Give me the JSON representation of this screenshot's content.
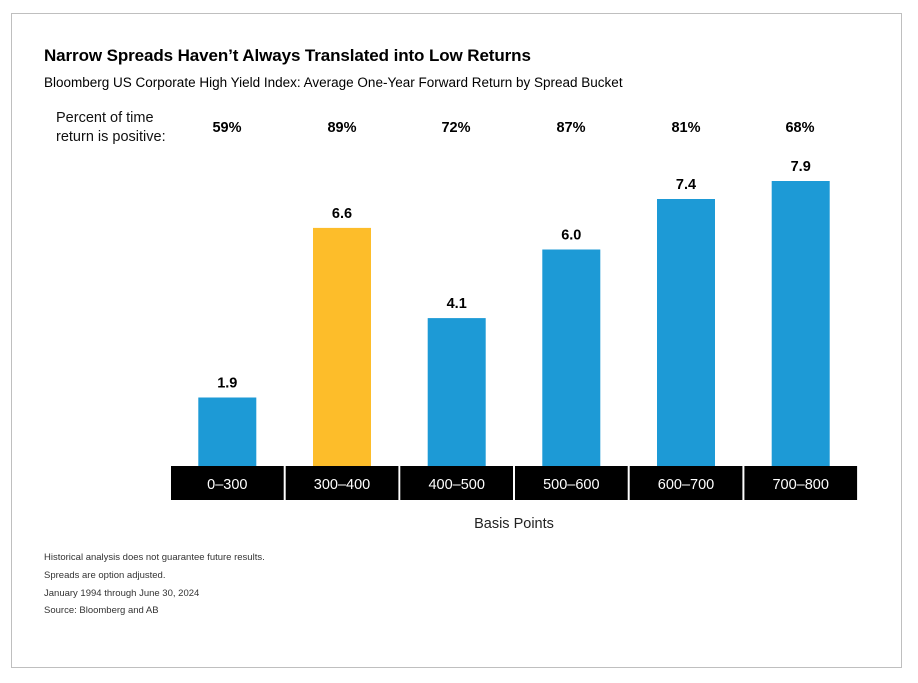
{
  "title": "Narrow Spreads Haven’t Always Translated into Low Returns",
  "subtitle": "Bloomberg US Corporate High Yield Index: Average One-Year Forward Return by Spread Bucket",
  "positive_label_line1": "Percent of time",
  "positive_label_line2": "return is positive:",
  "colors": {
    "blue": "#1d9ad6",
    "highlight": "#fdbd2a",
    "axis_band": "#000000"
  },
  "chart_data": {
    "type": "bar",
    "title": "Narrow Spreads Haven’t Always Translated into Low Returns",
    "subtitle": "Bloomberg US Corporate High Yield Index: Average One-Year Forward Return by Spread Bucket",
    "xlabel": "Basis Points",
    "ylabel": "",
    "categories": [
      "0–300",
      "300–400",
      "400–500",
      "500–600",
      "600–700",
      "700–800"
    ],
    "values": [
      1.9,
      6.6,
      4.1,
      6.0,
      7.4,
      7.9
    ],
    "value_labels": [
      "1.9",
      "6.6",
      "4.1",
      "6.0",
      "7.4",
      "7.9"
    ],
    "percent_positive": [
      "59%",
      "89%",
      "72%",
      "87%",
      "81%",
      "68%"
    ],
    "highlight_index": 1,
    "ylim": [
      0,
      7.9
    ],
    "grid": false
  },
  "notes": [
    "Historical analysis does not guarantee future results.",
    "Spreads are option adjusted.",
    "January 1994 through June 30, 2024",
    "Source: Bloomberg and AB"
  ]
}
